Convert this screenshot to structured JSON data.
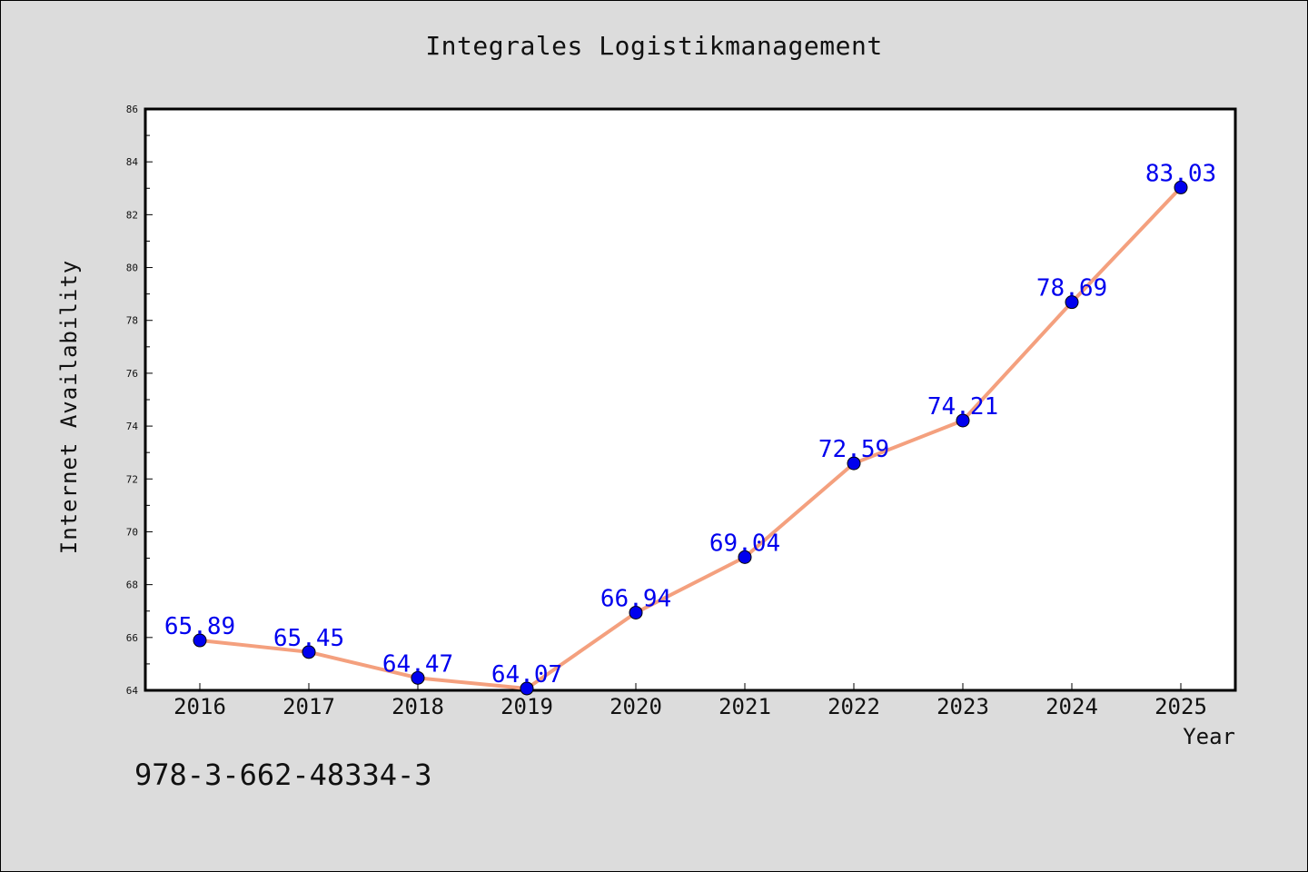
{
  "chart_data": {
    "type": "line",
    "title": "Integrales Logistikmanagement",
    "xlabel": "Year",
    "ylabel": "Internet Availability",
    "categories": [
      "2016",
      "2017",
      "2018",
      "2019",
      "2020",
      "2021",
      "2022",
      "2023",
      "2024",
      "2025"
    ],
    "values": [
      65.89,
      65.45,
      64.47,
      64.07,
      66.94,
      69.04,
      72.59,
      74.21,
      78.69,
      83.03
    ],
    "data_labels": [
      "65.89",
      "65.45",
      "64.47",
      "64.07",
      "66.94",
      "69.04",
      "72.59",
      "74.21",
      "78.69",
      "83.03"
    ],
    "ylim": [
      64,
      86
    ],
    "yticks": [
      "64",
      "66",
      "68",
      "70",
      "72",
      "74",
      "76",
      "78",
      "80",
      "82",
      "84",
      "86"
    ],
    "grid": false,
    "legend": "none",
    "line_color": "#f4a07e",
    "marker_color": "#0000ee",
    "label_color": "#0000ee",
    "plot_background": "#ffffff"
  },
  "footer": {
    "isbn": "978-3-662-48334-3"
  }
}
